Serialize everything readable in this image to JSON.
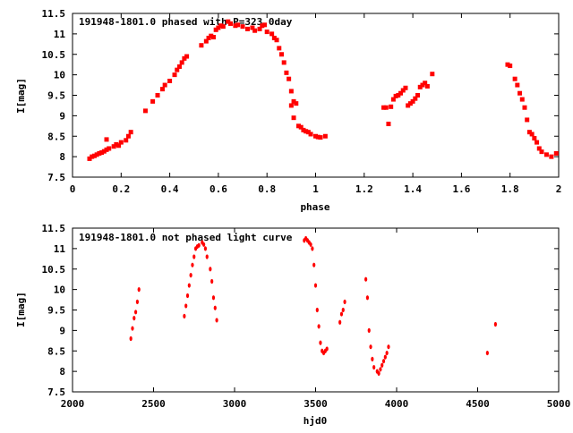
{
  "chart_data": [
    {
      "type": "scatter",
      "title": "191948-1801.0 phased with P=323.0day",
      "xlabel": "phase",
      "ylabel": "I[mag]",
      "xlim": [
        0,
        2
      ],
      "ylim": [
        11.5,
        7.5
      ],
      "y_inverted": true,
      "x_ticks": [
        "0",
        "0.2",
        "0.4",
        "0.6",
        "0.8",
        "1",
        "1.2",
        "1.4",
        "1.6",
        "1.8",
        "2"
      ],
      "x_tick_values": [
        0,
        0.2,
        0.4,
        0.6,
        0.8,
        1.0,
        1.2,
        1.4,
        1.6,
        1.8,
        2.0
      ],
      "y_ticks": [
        "7.5",
        "8",
        "8.5",
        "9",
        "9.5",
        "10",
        "10.5",
        "11",
        "11.5"
      ],
      "y_tick_values": [
        7.5,
        8,
        8.5,
        9,
        9.5,
        10,
        10.5,
        11,
        11.5
      ],
      "grid": false,
      "marker_color": "#ff0000",
      "series": [
        {
          "x": [
            0.07,
            0.08,
            0.09,
            0.1,
            0.11,
            0.12,
            0.13,
            0.14,
            0.14,
            0.15,
            0.17,
            0.18,
            0.19,
            0.2,
            0.22,
            0.23,
            0.24,
            0.3,
            0.33,
            0.35,
            0.37,
            0.38,
            0.4,
            0.42,
            0.43,
            0.44,
            0.45,
            0.46,
            0.47,
            0.53,
            0.55,
            0.56,
            0.57,
            0.58,
            0.59,
            0.6,
            0.61,
            0.62,
            0.64,
            0.65,
            0.67,
            0.68,
            0.7,
            0.72,
            0.74,
            0.75,
            0.77,
            0.78,
            0.79,
            0.8,
            0.82,
            0.83,
            0.84,
            0.85,
            0.86,
            0.87,
            0.88,
            0.89,
            0.9,
            0.9,
            0.91,
            0.91,
            0.92,
            0.93,
            0.94,
            0.95,
            0.96,
            0.97,
            0.98,
            1.0,
            1.01,
            1.02,
            1.04,
            1.28,
            1.29,
            1.3,
            1.31,
            1.32,
            1.33,
            1.34,
            1.35,
            1.36,
            1.37,
            1.38,
            1.39,
            1.4,
            1.41,
            1.42,
            1.43,
            1.44,
            1.45,
            1.46,
            1.48,
            1.79,
            1.8,
            1.82,
            1.83,
            1.84,
            1.85,
            1.86,
            1.87,
            1.88,
            1.89,
            1.9,
            1.91,
            1.92,
            1.93,
            1.95,
            1.97,
            1.99
          ],
          "y": [
            7.95,
            8.0,
            8.02,
            8.05,
            8.08,
            8.1,
            8.13,
            8.17,
            8.42,
            8.2,
            8.25,
            8.3,
            8.27,
            8.35,
            8.4,
            8.5,
            8.6,
            9.12,
            9.35,
            9.5,
            9.65,
            9.75,
            9.85,
            10.0,
            10.12,
            10.2,
            10.3,
            10.4,
            10.45,
            10.72,
            10.82,
            10.9,
            10.95,
            10.92,
            11.1,
            11.15,
            11.2,
            11.18,
            11.3,
            11.25,
            11.2,
            11.22,
            11.18,
            11.12,
            11.15,
            11.08,
            11.12,
            11.2,
            11.22,
            11.05,
            11.0,
            10.9,
            10.85,
            10.65,
            10.5,
            10.3,
            10.05,
            9.9,
            9.6,
            9.25,
            9.35,
            8.95,
            9.3,
            8.75,
            8.72,
            8.65,
            8.62,
            8.6,
            8.55,
            8.5,
            8.48,
            8.47,
            8.5,
            9.2,
            9.2,
            8.8,
            9.22,
            9.4,
            9.48,
            9.5,
            9.55,
            9.62,
            9.68,
            9.25,
            9.3,
            9.35,
            9.42,
            9.5,
            9.7,
            9.75,
            9.8,
            9.72,
            10.02,
            10.25,
            10.22,
            9.9,
            9.75,
            9.55,
            9.4,
            9.2,
            8.9,
            8.6,
            8.55,
            8.45,
            8.35,
            8.2,
            8.12,
            8.05,
            8.0,
            8.08
          ]
        }
      ]
    },
    {
      "type": "scatter",
      "title": "191948-1801.0 not phased light curve",
      "xlabel": "hjd0",
      "ylabel": "I[mag]",
      "xlim": [
        2000,
        5000
      ],
      "ylim": [
        11.5,
        7.5
      ],
      "y_inverted": true,
      "x_ticks": [
        "2000",
        "2500",
        "3000",
        "3500",
        "4000",
        "4500",
        "5000"
      ],
      "x_tick_values": [
        2000,
        2500,
        3000,
        3500,
        4000,
        4500,
        5000
      ],
      "y_ticks": [
        "7.5",
        "8",
        "8.5",
        "9",
        "9.5",
        "10",
        "10.5",
        "11",
        "11.5"
      ],
      "y_tick_values": [
        7.5,
        8,
        8.5,
        9,
        9.5,
        10,
        10.5,
        11,
        11.5
      ],
      "grid": false,
      "marker_color": "#ff0000",
      "series": [
        {
          "x": [
            2360,
            2370,
            2380,
            2390,
            2400,
            2410,
            2690,
            2700,
            2710,
            2720,
            2730,
            2740,
            2750,
            2760,
            2770,
            2780,
            2800,
            2810,
            2820,
            2830,
            2850,
            2860,
            2870,
            2880,
            2890,
            3430,
            3440,
            3450,
            3460,
            3470,
            3480,
            3490,
            3500,
            3510,
            3520,
            3530,
            3540,
            3550,
            3560,
            3570,
            3650,
            3660,
            3670,
            3680,
            3810,
            3820,
            3830,
            3840,
            3850,
            3860,
            3880,
            3890,
            3900,
            3910,
            3920,
            3930,
            3940,
            3950,
            4560,
            4610
          ],
          "y": [
            8.8,
            9.05,
            9.3,
            9.45,
            9.7,
            10.0,
            9.35,
            9.6,
            9.85,
            10.1,
            10.35,
            10.6,
            10.8,
            11.0,
            11.05,
            11.08,
            11.15,
            11.1,
            11.0,
            10.8,
            10.5,
            10.2,
            9.8,
            9.55,
            9.25,
            11.2,
            11.25,
            11.2,
            11.15,
            11.1,
            11.0,
            10.6,
            10.1,
            9.5,
            9.1,
            8.7,
            8.5,
            8.45,
            8.5,
            8.55,
            9.2,
            9.4,
            9.5,
            9.7,
            10.25,
            9.8,
            9.0,
            8.6,
            8.3,
            8.1,
            8.0,
            7.95,
            8.05,
            8.15,
            8.25,
            8.35,
            8.45,
            8.6,
            8.45,
            9.15
          ]
        }
      ]
    }
  ]
}
